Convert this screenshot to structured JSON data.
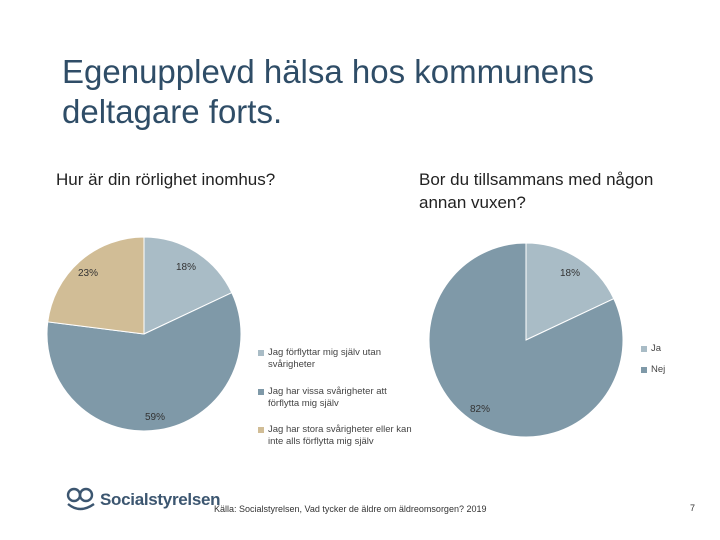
{
  "slide": {
    "title": "Egenupplevd hälsa hos kommunens deltagare forts.",
    "source": "Källa: Socialstyrelsen, Vad tycker de äldre om äldreomsorgen? 2019",
    "page_number": "7",
    "logo_text": "Socialstyrelsen"
  },
  "chart_data": [
    {
      "type": "pie",
      "title": "Hur är din rörlighet inomhus?",
      "categories": [
        "Jag förflyttar mig själv utan svårigheter",
        "Jag har vissa svårigheter att förflytta mig själv",
        "Jag har stora svårigheter eller kan inte alls förflytta mig själv"
      ],
      "values": [
        18,
        59,
        23
      ],
      "labels": [
        "18%",
        "59%",
        "23%"
      ],
      "colors": [
        "#a9bcc6",
        "#7f99a8",
        "#d1bd96"
      ],
      "legend": "center"
    },
    {
      "type": "pie",
      "title": "Bor du tillsammans med någon annan vuxen?",
      "categories": [
        "Ja",
        "Nej"
      ],
      "values": [
        18,
        82
      ],
      "labels": [
        "18%",
        "82%"
      ],
      "colors": [
        "#a9bcc6",
        "#7f99a8"
      ],
      "legend": "right"
    }
  ]
}
